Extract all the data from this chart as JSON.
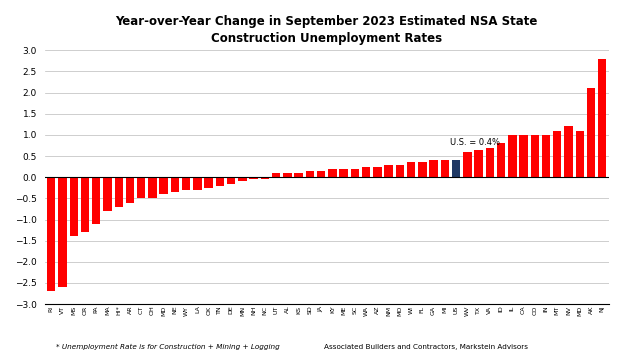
{
  "title_line1": "Year-over-Year Change in September 2023 Estimated NSA State",
  "title_line2": "Construction Unemployment Rates",
  "labels": [
    "RI",
    "VT",
    "MS",
    "OR",
    "PA",
    "MA",
    "HI*",
    "AR",
    "CT",
    "OH",
    "MD",
    "NE",
    "WY",
    "LA",
    "OK",
    "TN",
    "DE",
    "MN",
    "NH",
    "NC",
    "UT",
    "AL",
    "KS",
    "SD",
    "JA",
    "KY",
    "ME",
    "SC",
    "WA",
    "AZ",
    "NM",
    "MO",
    "WI",
    "FL",
    "GA",
    "MI",
    "US",
    "WV",
    "TX",
    "VA",
    "ID",
    "IL",
    "CA",
    "CO",
    "IN",
    "MT",
    "NV",
    "MD",
    "AK",
    "NJ"
  ],
  "values": [
    -2.7,
    -2.6,
    -1.4,
    -1.3,
    -1.1,
    -0.8,
    -0.7,
    -0.6,
    -0.5,
    -0.5,
    -0.4,
    -0.35,
    -0.3,
    -0.3,
    -0.25,
    -0.2,
    -0.15,
    -0.1,
    -0.05,
    -0.05,
    0.1,
    0.1,
    0.1,
    0.15,
    0.15,
    0.2,
    0.2,
    0.2,
    0.25,
    0.25,
    0.3,
    0.3,
    0.35,
    0.35,
    0.4,
    0.4,
    0.4,
    0.6,
    0.65,
    0.7,
    0.8,
    1.0,
    1.0,
    1.0,
    1.0,
    1.1,
    1.2,
    1.1,
    2.1,
    2.8
  ],
  "us_index": 36,
  "us_label": "U.S. = 0.4%",
  "bar_color_red": "#FF0000",
  "bar_color_navy": "#1F3864",
  "ylim": [
    -3.0,
    3.0
  ],
  "yticks": [
    -3.0,
    -2.5,
    -2.0,
    -1.5,
    -1.0,
    -0.5,
    0.0,
    0.5,
    1.0,
    1.5,
    2.0,
    2.5,
    3.0
  ],
  "footnote_left": "* Unemployment Rate is for Construction + Mining + Logging",
  "footnote_right": "Associated Builders and Contractors, Markstein Advisors",
  "bg_color": "#FFFFFF",
  "grid_color": "#BBBBBB"
}
